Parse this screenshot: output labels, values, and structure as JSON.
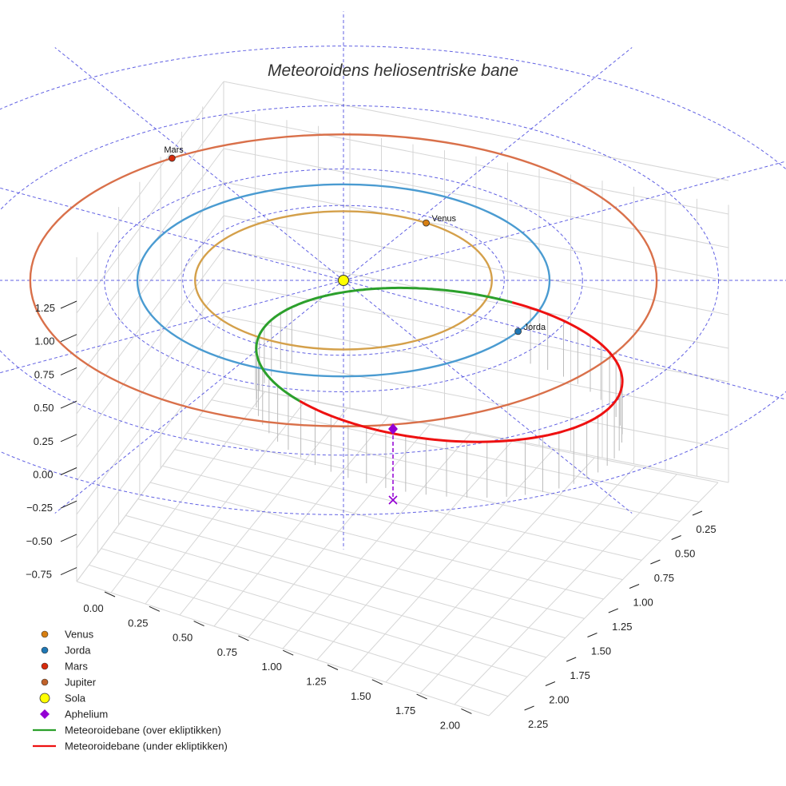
{
  "chart_data": {
    "type": "line",
    "title": "Meteoroidens heliosentriske bane",
    "projection": "3d",
    "grid": true,
    "legend_position": "bottom-left",
    "z_ticks": [
      "1.25",
      "1.00",
      "0.75",
      "0.50",
      "0.25",
      "0.00",
      "−0.25",
      "−0.50",
      "−0.75"
    ],
    "x_ticks": [
      "0.00",
      "0.25",
      "0.50",
      "0.75",
      "1.00",
      "1.25",
      "1.50",
      "1.75",
      "2.00"
    ],
    "y_ticks": [
      "0.25",
      "0.50",
      "0.75",
      "1.00",
      "1.25",
      "1.50",
      "1.75",
      "2.00",
      "2.25"
    ],
    "orbits": [
      {
        "name": "Venus",
        "radius_au": 0.72,
        "color": "#d4a04a"
      },
      {
        "name": "Jorda",
        "radius_au": 1.0,
        "color": "#4a9bd1"
      },
      {
        "name": "Mars",
        "radius_au": 1.52,
        "color": "#d9704a"
      }
    ],
    "planets": [
      {
        "name": "Venus",
        "label": "Venus",
        "color": "#d77f12"
      },
      {
        "name": "Jorda",
        "label": "Jorda",
        "color": "#1f77b4"
      },
      {
        "name": "Mars",
        "label": "Mars",
        "color": "#d62b0c"
      }
    ],
    "meteoroid_series": [
      {
        "name": "Meteoroidebane (over ekliptikken)",
        "color": "#2ca02c"
      },
      {
        "name": "Meteoroidebane (under ekliptikken)",
        "color": "#ee1111"
      }
    ],
    "sun_color": "#ffff00",
    "aphelion_color": "#9400d3",
    "reference_color": "#5050e0"
  },
  "legend": [
    {
      "label": "Venus",
      "kind": "dot",
      "color": "#d77f12"
    },
    {
      "label": "Jorda",
      "kind": "dot",
      "color": "#1f77b4"
    },
    {
      "label": "Mars",
      "kind": "dot",
      "color": "#d62b0c"
    },
    {
      "label": "Jupiter",
      "kind": "dot",
      "color": "#c0622a"
    },
    {
      "label": "Sola",
      "kind": "sun",
      "color": "#ffff00"
    },
    {
      "label": "Aphelium",
      "kind": "diamond",
      "color": "#9400d3"
    },
    {
      "label": "Meteoroidebane (over ekliptikken)",
      "kind": "line",
      "color": "#2ca02c"
    },
    {
      "label": "Meteoroidebane (under ekliptikken)",
      "kind": "line",
      "color": "#ee1111"
    }
  ]
}
